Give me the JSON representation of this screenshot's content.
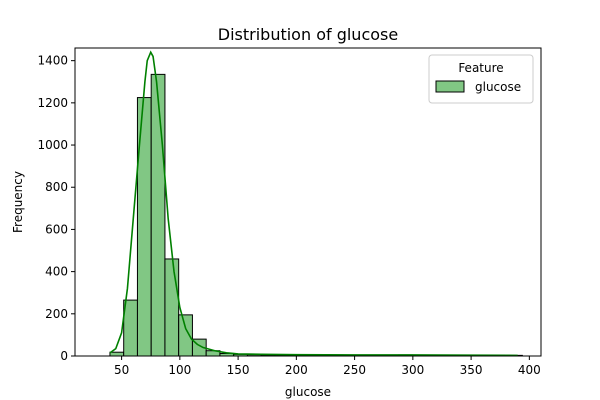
{
  "chart_data": {
    "type": "bar",
    "title": "Distribution of glucose",
    "xlabel": "glucose",
    "ylabel": "Frequency",
    "xlim": [
      10,
      410
    ],
    "ylim": [
      0,
      1460
    ],
    "x_ticks": [
      50,
      100,
      150,
      200,
      250,
      300,
      350,
      400
    ],
    "y_ticks": [
      0,
      200,
      400,
      600,
      800,
      1000,
      1200,
      1400
    ],
    "grid": false,
    "legend": {
      "title": "Feature",
      "placement": "top-right",
      "entries": [
        "glucose"
      ]
    },
    "bins": {
      "start": 40,
      "width": 11.8,
      "counts": [
        18,
        265,
        1225,
        1335,
        460,
        195,
        80,
        25,
        12,
        8,
        6,
        5,
        5,
        4,
        5,
        6,
        5,
        4,
        4,
        3,
        4,
        5,
        3,
        4,
        3,
        3,
        4,
        3,
        4,
        3
      ]
    },
    "kde": {
      "x": [
        40,
        45,
        50,
        55,
        60,
        65,
        70,
        72,
        75,
        77,
        80,
        85,
        90,
        95,
        100,
        105,
        110,
        115,
        120,
        130,
        140,
        150,
        170,
        200,
        250,
        300,
        350,
        390
      ],
      "y": [
        15,
        35,
        110,
        320,
        650,
        980,
        1300,
        1400,
        1440,
        1420,
        1300,
        1000,
        650,
        400,
        230,
        130,
        80,
        55,
        40,
        25,
        15,
        10,
        8,
        6,
        5,
        5,
        4,
        3
      ]
    },
    "colors": {
      "bar_fill": "#81c784",
      "bar_edge": "#000000",
      "kde_line": "#008000"
    }
  }
}
